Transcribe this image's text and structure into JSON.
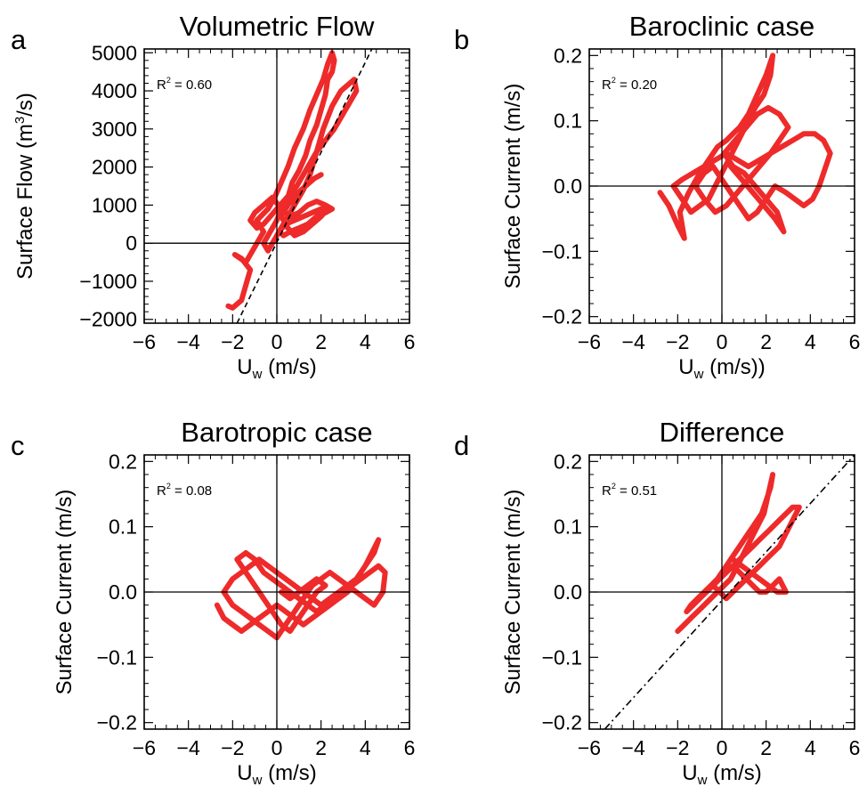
{
  "colors": {
    "data": "#ee2a2a",
    "axis": "#000000",
    "fit": "#000000"
  },
  "chart_data": [
    {
      "id": "a",
      "type": "scatter",
      "letter": "a",
      "title": "Volumetric Flow",
      "xlabel": {
        "main": "U",
        "sub": "w",
        "tail": " (m/s)"
      },
      "ylabel": {
        "pre": "Surface Flow (m",
        "sup": "3",
        "post": "/s)"
      },
      "r2": {
        "label": "R",
        "sup": "2",
        "value": " = 0.60"
      },
      "xlim": [
        -6,
        6
      ],
      "ylim": [
        -2100,
        5100
      ],
      "xticks": [
        -6,
        -4,
        -2,
        0,
        2,
        4,
        6
      ],
      "xtick_labels": [
        "−6",
        "−4",
        "−2",
        "0",
        "2",
        "4",
        "6"
      ],
      "yticks": [
        -2000,
        -1000,
        0,
        1000,
        2000,
        3000,
        4000,
        5000
      ],
      "ytick_labels": [
        "−2000",
        "−1000",
        "0",
        "1000",
        "2000",
        "3000",
        "4000",
        "5000"
      ],
      "fit_line": {
        "style": "dashed",
        "x": [
          -1.8,
          4.3
        ],
        "y": [
          -2100,
          5100
        ]
      },
      "series": [
        {
          "x": [
            -2.2,
            -2.0,
            -1.6,
            -1.4,
            -1.2,
            -1.6,
            -1.9,
            -1.4,
            -1.0,
            -0.6,
            -0.9,
            -0.4,
            -0.1,
            0.2,
            0.5,
            0.8,
            1.2,
            1.5,
            1.8,
            2.1,
            2.3,
            2.5,
            2.6,
            2.5,
            2.3,
            2.2,
            2.0,
            1.8,
            1.5,
            1.3,
            1.0,
            0.7,
            0.5,
            0.2,
            0.0,
            -0.3,
            -0.6,
            -0.4,
            0.0,
            0.4,
            0.8,
            1.2,
            1.5,
            1.7,
            1.9,
            2.1,
            2.3,
            2.5,
            2.7,
            2.9,
            3.1,
            3.3,
            3.5,
            3.6,
            3.3,
            3.0,
            2.6,
            2.2,
            1.8,
            1.5,
            1.2,
            0.9,
            0.6,
            0.3,
            0.0,
            -0.3,
            -0.6,
            -0.9,
            -1.2,
            -1.0,
            -0.6,
            -0.2,
            0.2,
            0.6,
            1.0,
            1.4,
            1.8,
            2.2,
            2.5,
            2.2,
            1.8,
            1.4,
            1.0,
            0.6,
            0.3,
            0.1,
            0.4,
            0.8,
            1.2,
            1.6,
            2.0,
            2.3,
            2.0,
            1.6,
            1.2,
            0.8,
            0.5,
            0.2,
            0.5,
            0.9,
            1.3,
            1.7,
            2.0
          ],
          "y": [
            -1650,
            -1700,
            -1500,
            -1100,
            -700,
            -400,
            -300,
            -500,
            -100,
            300,
            600,
            900,
            1200,
            1600,
            2000,
            2500,
            3000,
            3500,
            3900,
            4300,
            4700,
            5000,
            4800,
            4500,
            4300,
            3900,
            3500,
            3100,
            2700,
            2300,
            1900,
            1600,
            1200,
            900,
            600,
            300,
            0,
            -200,
            200,
            600,
            1000,
            1400,
            1800,
            2200,
            2600,
            3000,
            3300,
            3600,
            3800,
            4000,
            4100,
            4200,
            4300,
            4000,
            3700,
            3400,
            3000,
            2700,
            2400,
            2100,
            1800,
            1500,
            1300,
            1100,
            900,
            700,
            500,
            400,
            600,
            800,
            1000,
            1200,
            900,
            700,
            800,
            1000,
            1100,
            1000,
            900,
            800,
            700,
            500,
            400,
            300,
            200,
            300,
            500,
            600,
            700,
            800,
            900,
            900,
            700,
            500,
            300,
            200,
            400,
            700,
            1000,
            1300,
            1500,
            1700,
            1800
          ]
        }
      ]
    },
    {
      "id": "b",
      "type": "scatter",
      "letter": "b",
      "title": "Baroclinic case",
      "xlabel": {
        "main": "U",
        "sub": "w",
        "tail": " (m/s))"
      },
      "ylabel": {
        "pre": "Surface Current (m/s)",
        "sup": "",
        "post": ""
      },
      "r2": {
        "label": "R",
        "sup": "2",
        "value": " = 0.20"
      },
      "xlim": [
        -6,
        6
      ],
      "ylim": [
        -0.21,
        0.21
      ],
      "xticks": [
        -6,
        -4,
        -2,
        0,
        2,
        4,
        6
      ],
      "xtick_labels": [
        "−6",
        "−4",
        "−2",
        "0",
        "2",
        "4",
        "6"
      ],
      "yticks": [
        -0.2,
        -0.1,
        0.0,
        0.1,
        0.2
      ],
      "ytick_labels": [
        "−0.2",
        "−0.1",
        "0.0",
        "0.1",
        "0.2"
      ],
      "series": [
        {
          "x": [
            -2.8,
            -2.4,
            -2.0,
            -1.7,
            -1.9,
            -1.5,
            -1.0,
            -0.6,
            -0.2,
            0.2,
            0.5,
            0.8,
            1.2,
            1.6,
            2.0,
            2.3,
            2.2,
            1.9,
            1.5,
            1.2,
            0.9,
            0.6,
            0.3,
            0.0,
            -0.3,
            -0.6,
            -1.0,
            -1.4,
            -1.8,
            -2.2,
            -1.8,
            -1.3,
            -0.8,
            -0.3,
            0.2,
            0.7,
            1.2,
            1.7,
            2.2,
            2.7,
            3.2,
            3.7,
            4.2,
            4.6,
            4.9,
            4.7,
            4.4,
            4.1,
            3.7,
            3.3,
            2.9,
            2.4,
            2.0,
            1.6,
            1.2,
            0.8,
            0.4,
            0.0,
            -0.4,
            -0.8,
            -1.2,
            -0.8,
            -0.3,
            0.2,
            0.7,
            1.2,
            1.7,
            2.2,
            2.6,
            3.0,
            2.6,
            2.1,
            1.6,
            1.1,
            0.6,
            0.1,
            0.5,
            1.0,
            1.5,
            2.0,
            2.5,
            2.8,
            2.4,
            1.9,
            1.4,
            0.9,
            0.4
          ],
          "y": [
            -0.01,
            -0.03,
            -0.06,
            -0.08,
            -0.04,
            -0.01,
            0.02,
            0.04,
            0.06,
            0.07,
            0.08,
            0.09,
            0.11,
            0.14,
            0.17,
            0.2,
            0.17,
            0.14,
            0.12,
            0.1,
            0.08,
            0.06,
            0.04,
            0.02,
            0.0,
            -0.02,
            -0.03,
            -0.04,
            -0.02,
            0.0,
            0.01,
            0.02,
            0.03,
            0.04,
            0.05,
            0.04,
            0.03,
            0.04,
            0.05,
            0.06,
            0.07,
            0.08,
            0.08,
            0.07,
            0.05,
            0.03,
            0.0,
            -0.02,
            -0.03,
            -0.02,
            -0.01,
            0.0,
            -0.02,
            -0.04,
            -0.05,
            -0.03,
            -0.01,
            0.01,
            0.03,
            0.02,
            0.0,
            -0.02,
            -0.04,
            -0.03,
            -0.01,
            0.01,
            0.03,
            0.05,
            0.07,
            0.09,
            0.11,
            0.12,
            0.11,
            0.09,
            0.07,
            0.05,
            0.03,
            0.02,
            0.0,
            -0.02,
            -0.04,
            -0.07,
            -0.05,
            -0.03,
            -0.01,
            0.01,
            0.03
          ]
        }
      ]
    },
    {
      "id": "c",
      "type": "scatter",
      "letter": "c",
      "title": "Barotropic case",
      "xlabel": {
        "main": "U",
        "sub": "w",
        "tail": " (m/s)"
      },
      "ylabel": {
        "pre": "Surface Current (m/s)",
        "sup": "",
        "post": ""
      },
      "r2": {
        "label": "R",
        "sup": "2",
        "value": " = 0.08"
      },
      "xlim": [
        -6,
        6
      ],
      "ylim": [
        -0.21,
        0.21
      ],
      "xticks": [
        -6,
        -4,
        -2,
        0,
        2,
        4,
        6
      ],
      "xtick_labels": [
        "−6",
        "−4",
        "−2",
        "0",
        "2",
        "4",
        "6"
      ],
      "yticks": [
        -0.2,
        -0.1,
        0.0,
        0.1,
        0.2
      ],
      "ytick_labels": [
        "−0.2",
        "−0.1",
        "0.0",
        "0.1",
        "0.2"
      ],
      "series": [
        {
          "x": [
            -2.7,
            -2.4,
            -2.0,
            -1.6,
            -1.2,
            -0.8,
            -0.4,
            0.0,
            0.4,
            0.8,
            1.2,
            1.6,
            2.0,
            2.4,
            2.8,
            3.2,
            3.6,
            4.0,
            4.4,
            4.6,
            4.3,
            4.0,
            3.6,
            3.2,
            2.8,
            2.4,
            2.0,
            1.6,
            1.2,
            0.8,
            0.4,
            0.0,
            -0.4,
            -0.8,
            -1.2,
            -1.6,
            -2.0,
            -2.4,
            -2.0,
            -1.6,
            -1.2,
            -0.8,
            -0.4,
            0.0,
            0.4,
            0.8,
            1.2,
            1.6,
            2.0,
            2.4,
            2.8,
            3.2,
            3.6,
            4.0,
            4.4,
            4.8,
            4.9,
            4.6,
            4.2,
            3.8,
            3.4,
            3.0,
            2.6,
            2.2,
            1.8,
            1.4,
            1.0,
            0.6,
            0.2,
            -0.2,
            -0.6,
            -1.0,
            -1.4,
            -1.8,
            -1.4,
            -1.0,
            -0.6,
            -0.2,
            0.2,
            0.6,
            1.0,
            1.4,
            1.8,
            2.2,
            1.8,
            1.4,
            1.0,
            0.6,
            0.2
          ],
          "y": [
            -0.02,
            -0.04,
            -0.05,
            -0.06,
            -0.05,
            -0.04,
            -0.03,
            -0.02,
            -0.03,
            -0.04,
            -0.05,
            -0.04,
            -0.03,
            -0.02,
            -0.01,
            0.0,
            0.02,
            0.04,
            0.06,
            0.08,
            0.06,
            0.04,
            0.02,
            0.01,
            0.0,
            -0.01,
            -0.02,
            -0.01,
            0.0,
            0.01,
            0.02,
            0.03,
            0.04,
            0.05,
            0.04,
            0.03,
            0.02,
            0.0,
            -0.02,
            -0.03,
            -0.04,
            -0.05,
            -0.06,
            -0.07,
            -0.05,
            -0.03,
            -0.01,
            0.01,
            0.02,
            0.03,
            0.02,
            0.01,
            0.0,
            -0.01,
            -0.02,
            0.0,
            0.03,
            0.04,
            0.03,
            0.02,
            0.01,
            0.0,
            -0.01,
            -0.02,
            -0.03,
            -0.02,
            -0.01,
            0.0,
            0.01,
            0.02,
            0.03,
            0.05,
            0.06,
            0.05,
            0.03,
            0.01,
            -0.01,
            -0.03,
            -0.05,
            -0.06,
            -0.04,
            -0.02,
            0.0,
            0.01,
            0.02,
            0.01,
            0.0,
            -0.01,
            0.0
          ]
        }
      ]
    },
    {
      "id": "d",
      "type": "scatter",
      "letter": "d",
      "title": "Difference",
      "xlabel": {
        "main": "U",
        "sub": "w",
        "tail": " (m/s)"
      },
      "ylabel": {
        "pre": "Surface Current (m/s)",
        "sup": "",
        "post": ""
      },
      "r2": {
        "label": "R",
        "sup": "2",
        "value": " = 0.51"
      },
      "xlim": [
        -6,
        6
      ],
      "ylim": [
        -0.21,
        0.21
      ],
      "xticks": [
        -6,
        -4,
        -2,
        0,
        2,
        4,
        6
      ],
      "xtick_labels": [
        "−6",
        "−4",
        "−2",
        "0",
        "2",
        "4",
        "6"
      ],
      "yticks": [
        -0.2,
        -0.1,
        0.0,
        0.1,
        0.2
      ],
      "ytick_labels": [
        "−0.2",
        "−0.1",
        "0.0",
        "0.1",
        "0.2"
      ],
      "fit_line": {
        "style": "dashdot",
        "x": [
          -5.3,
          6.0
        ],
        "y": [
          -0.21,
          0.21
        ]
      },
      "series": [
        {
          "x": [
            -2.0,
            -1.7,
            -1.4,
            -1.1,
            -0.8,
            -0.5,
            -0.2,
            0.1,
            0.4,
            0.7,
            1.0,
            1.3,
            1.6,
            1.9,
            2.1,
            2.3,
            2.2,
            2.0,
            1.8,
            1.6,
            1.4,
            1.2,
            1.0,
            0.8,
            0.6,
            0.4,
            0.2,
            0.0,
            -0.2,
            -0.5,
            -0.8,
            -1.1,
            -1.4,
            -1.6,
            -1.3,
            -1.0,
            -0.7,
            -0.4,
            -0.1,
            0.2,
            0.5,
            0.8,
            1.1,
            1.4,
            1.7,
            2.0,
            2.3,
            2.6,
            2.9,
            3.2,
            3.5,
            3.2,
            2.9,
            2.6,
            2.3,
            2.0,
            1.7,
            1.4,
            1.1,
            0.8,
            0.5,
            0.2,
            -0.1,
            -0.4,
            -0.1,
            0.2,
            0.5,
            0.8,
            1.1,
            1.4,
            1.7,
            2.0,
            2.3,
            2.6,
            2.9,
            2.5,
            2.1,
            1.7,
            1.3,
            0.9,
            0.5
          ],
          "y": [
            -0.06,
            -0.05,
            -0.04,
            -0.03,
            -0.02,
            -0.01,
            0.0,
            0.01,
            0.02,
            0.04,
            0.06,
            0.08,
            0.1,
            0.12,
            0.15,
            0.18,
            0.16,
            0.14,
            0.12,
            0.11,
            0.1,
            0.09,
            0.08,
            0.07,
            0.06,
            0.05,
            0.04,
            0.03,
            0.02,
            0.01,
            0.0,
            -0.01,
            -0.02,
            -0.03,
            -0.02,
            -0.01,
            0.0,
            0.01,
            0.02,
            0.03,
            0.04,
            0.05,
            0.06,
            0.07,
            0.08,
            0.09,
            0.1,
            0.11,
            0.12,
            0.13,
            0.13,
            0.11,
            0.09,
            0.07,
            0.06,
            0.05,
            0.04,
            0.03,
            0.02,
            0.01,
            0.0,
            -0.01,
            0.0,
            0.01,
            0.02,
            0.03,
            0.04,
            0.03,
            0.02,
            0.01,
            0.0,
            0.0,
            0.01,
            0.02,
            0.0,
            0.0,
            0.01,
            0.02,
            0.03,
            0.04,
            0.05
          ]
        }
      ]
    }
  ]
}
